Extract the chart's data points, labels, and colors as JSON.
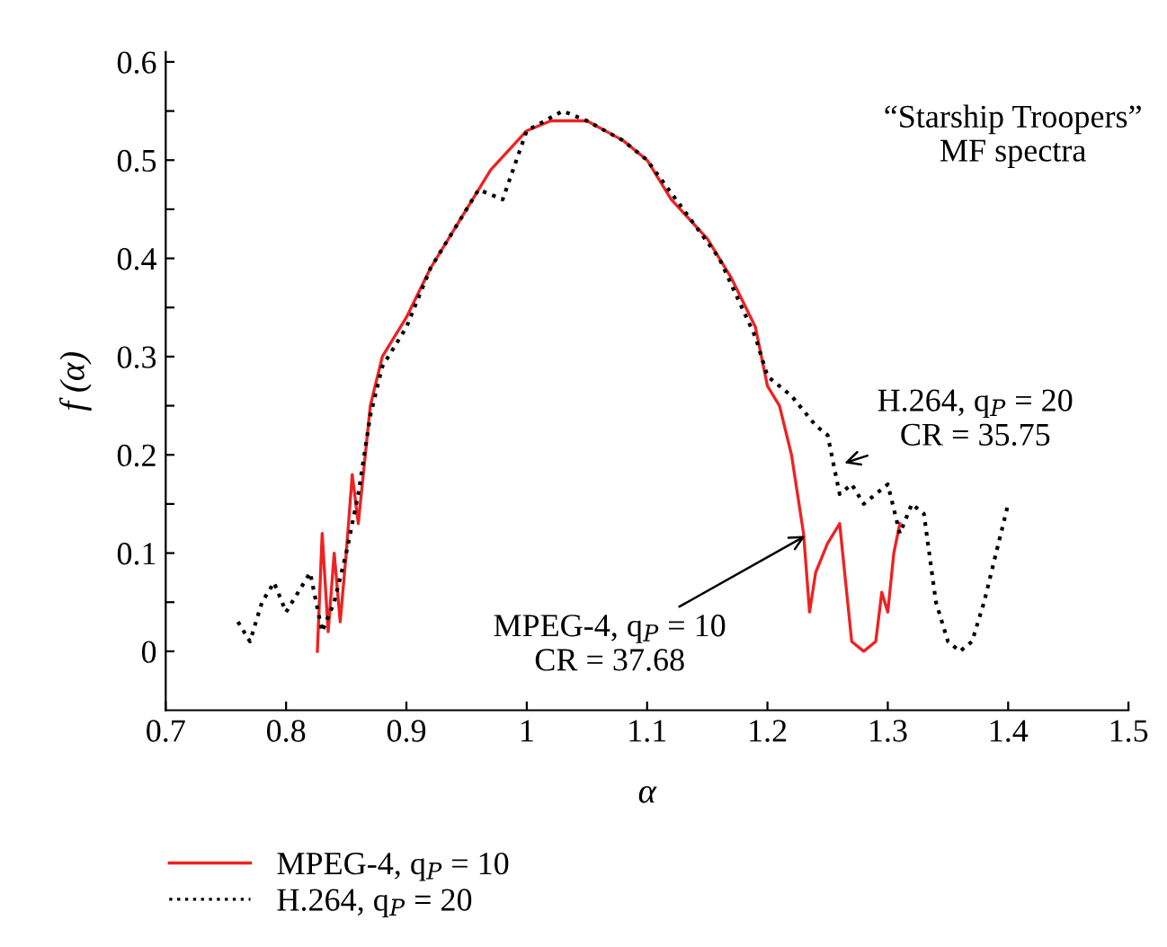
{
  "chart_data": {
    "type": "line",
    "xlabel": "α",
    "ylabel": "f (α)",
    "xlim": [
      0.7,
      1.5
    ],
    "ylim": [
      -0.06,
      0.61
    ],
    "xticks": [
      0.7,
      0.8,
      0.9,
      1,
      1.1,
      1.2,
      1.3,
      1.4,
      1.5
    ],
    "yticks": [
      0,
      {
        "value": 0.05,
        "label": null
      },
      0.1,
      {
        "value": 0.15,
        "label": null
      },
      0.2,
      {
        "value": 0.25,
        "label": null
      },
      0.3,
      {
        "value": 0.35,
        "label": null
      },
      0.4,
      {
        "value": 0.45,
        "label": null
      },
      0.5,
      {
        "value": 0.55,
        "label": null
      },
      0.6
    ],
    "grid": false,
    "legend": "bottom",
    "marker": "none",
    "series": [
      {
        "name": "MPEG-4, q$_{P}$ = 10",
        "color": "#ee2222",
        "line_style": "solid",
        "x": [
          0.826,
          0.83,
          0.835,
          0.84,
          0.845,
          0.85,
          0.855,
          0.86,
          0.87,
          0.88,
          0.9,
          0.92,
          0.95,
          0.97,
          1.0,
          1.02,
          1.05,
          1.08,
          1.1,
          1.12,
          1.15,
          1.17,
          1.19,
          1.2,
          1.21,
          1.22,
          1.23,
          1.235,
          1.24,
          1.25,
          1.26,
          1.265,
          1.27,
          1.28,
          1.29,
          1.295,
          1.3,
          1.305,
          1.31
        ],
        "values": [
          0.0,
          0.12,
          0.02,
          0.1,
          0.03,
          0.1,
          0.18,
          0.13,
          0.25,
          0.3,
          0.34,
          0.39,
          0.45,
          0.49,
          0.53,
          0.54,
          0.54,
          0.52,
          0.5,
          0.46,
          0.42,
          0.38,
          0.33,
          0.27,
          0.25,
          0.2,
          0.12,
          0.04,
          0.08,
          0.11,
          0.13,
          0.07,
          0.01,
          0.0,
          0.01,
          0.06,
          0.04,
          0.1,
          0.13
        ]
      },
      {
        "name": "H.264, q$_{P}$ = 20",
        "color": "#000000",
        "line_style": "dotted",
        "x": [
          0.76,
          0.77,
          0.78,
          0.79,
          0.8,
          0.81,
          0.82,
          0.83,
          0.84,
          0.85,
          0.86,
          0.87,
          0.88,
          0.9,
          0.92,
          0.95,
          0.96,
          0.98,
          1.0,
          1.03,
          1.05,
          1.08,
          1.1,
          1.13,
          1.16,
          1.19,
          1.2,
          1.22,
          1.24,
          1.25,
          1.26,
          1.27,
          1.28,
          1.3,
          1.31,
          1.32,
          1.33,
          1.34,
          1.35,
          1.36,
          1.37,
          1.38,
          1.39,
          1.4
        ],
        "values": [
          0.03,
          0.01,
          0.05,
          0.07,
          0.04,
          0.06,
          0.08,
          0.02,
          0.05,
          0.1,
          0.16,
          0.24,
          0.29,
          0.33,
          0.39,
          0.45,
          0.47,
          0.46,
          0.53,
          0.55,
          0.54,
          0.52,
          0.5,
          0.45,
          0.4,
          0.32,
          0.28,
          0.26,
          0.23,
          0.22,
          0.16,
          0.17,
          0.15,
          0.17,
          0.12,
          0.15,
          0.14,
          0.05,
          0.01,
          0.0,
          0.01,
          0.05,
          0.1,
          0.15
        ]
      }
    ],
    "annotations": [
      "“Starship Troopers”\nMF spectra",
      {
        "text": "H.264, q$_{P}$ = 20\nCR = 35.75",
        "x": 1.26,
        "y": 0.19
      },
      {
        "text": "MPEG-4, q$_{P}$ = 10\nCR = 37.68",
        "x": 1.235,
        "y": 0.12
      }
    ]
  }
}
